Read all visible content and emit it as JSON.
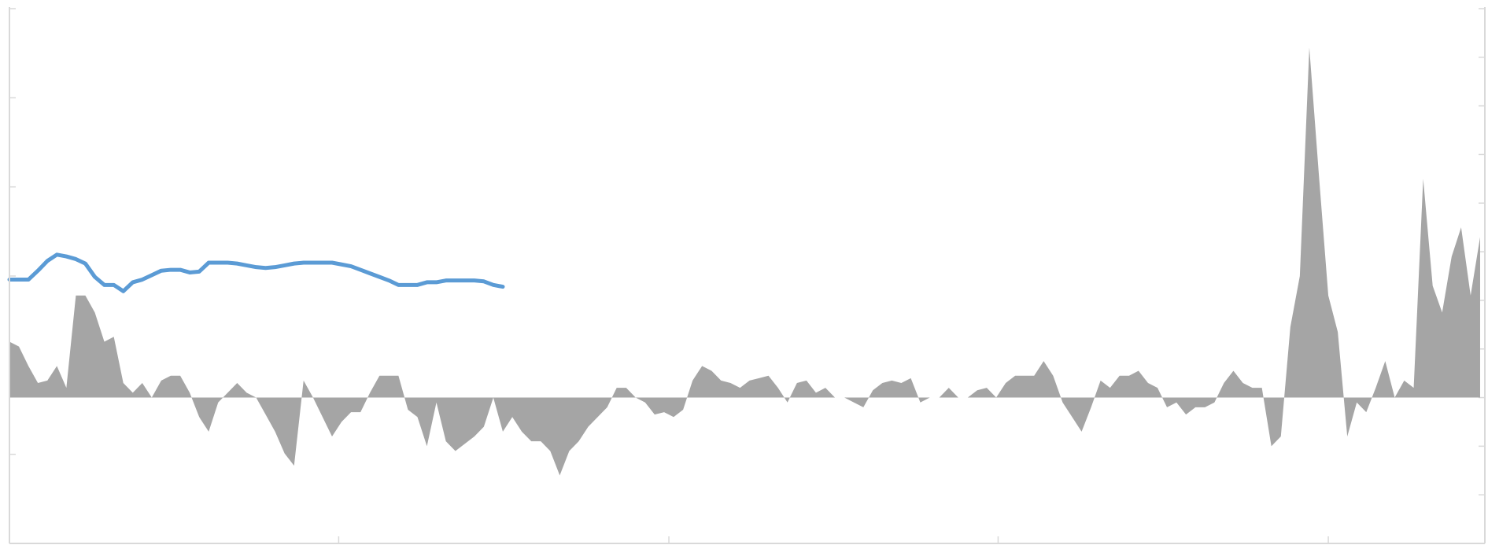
{
  "chart_data": {
    "type": "combo",
    "grid": false,
    "x": [
      0,
      10,
      20,
      30,
      40,
      50,
      60,
      70,
      80,
      90,
      100,
      110,
      120,
      130,
      140,
      150,
      160,
      170,
      180,
      190,
      200,
      210,
      220,
      230,
      240,
      250,
      260,
      270,
      280,
      290,
      300,
      310,
      320,
      330,
      340,
      350,
      360,
      370,
      380,
      390,
      400,
      410,
      420,
      430,
      440,
      450,
      460,
      470,
      480,
      490,
      500,
      510,
      520,
      530,
      540,
      550,
      560,
      570,
      580,
      590,
      600,
      610,
      620,
      630,
      640,
      650,
      660,
      670,
      680,
      690,
      700,
      710,
      720,
      730,
      740,
      750,
      760,
      770,
      780,
      790,
      800,
      810,
      820,
      830,
      840,
      850,
      860,
      870,
      880,
      890,
      900,
      910,
      920,
      930,
      940,
      950,
      960,
      970,
      980,
      990,
      1000,
      1010,
      1020,
      1030,
      1040,
      1050,
      1060,
      1070,
      1080,
      1090,
      1100,
      1110,
      1120,
      1130,
      1140,
      1150,
      1160,
      1170,
      1180,
      1190,
      1200,
      1210,
      1220,
      1230,
      1240,
      1250,
      1260,
      1270,
      1280,
      1290,
      1300,
      1310,
      1320,
      1330,
      1340,
      1350,
      1360,
      1370,
      1380,
      1390,
      1400,
      1410,
      1420,
      1430,
      1440,
      1450,
      1460,
      1470,
      1480,
      1490,
      1500,
      1510,
      1520,
      1530,
      1540,
      1550
    ],
    "xlim": [
      0,
      1555
    ],
    "xticks": [
      347,
      695,
      1042,
      1390
    ],
    "ylim": [
      0,
      6
    ],
    "yticks": [
      0,
      1,
      2,
      3,
      4,
      5,
      6
    ],
    "y2lim": [
      -3,
      8
    ],
    "y2ticks": [
      -3,
      -2,
      -1,
      0,
      1,
      2,
      3,
      4,
      5,
      6,
      7,
      8
    ],
    "series": [
      {
        "type": "area",
        "axis": "y2",
        "color": "#a5a5a5",
        "values": [
          1.15,
          1.05,
          0.65,
          0.3,
          0.35,
          0.65,
          0.2,
          2.1,
          2.1,
          1.75,
          1.15,
          1.25,
          0.3,
          0.1,
          0.3,
          0,
          0.35,
          0.45,
          0.45,
          0.1,
          -0.4,
          -0.7,
          -0.1,
          0.1,
          0.3,
          0.1,
          0,
          -0.35,
          -0.7,
          -1.15,
          -1.4,
          0.35,
          0,
          -0.4,
          -0.8,
          -0.5,
          -0.3,
          -0.3,
          0.1,
          0.45,
          0.45,
          0.45,
          -0.25,
          -0.4,
          -1,
          -0.1,
          -0.9,
          -1.1,
          -0.95,
          -0.8,
          -0.6,
          0,
          -0.7,
          -0.4,
          -0.7,
          -0.9,
          -0.9,
          -1.1,
          -1.6,
          -1.1,
          -0.9,
          -0.6,
          -0.4,
          -0.2,
          0.2,
          0.2,
          0,
          -0.1,
          -0.35,
          -0.3,
          -0.4,
          -0.25,
          0.35,
          0.65,
          0.55,
          0.35,
          0.3,
          0.2,
          0.35,
          0.4,
          0.45,
          0.2,
          -0.1,
          0.3,
          0.35,
          0.1,
          0.2,
          0,
          0,
          -0.1,
          -0.2,
          0.15,
          0.3,
          0.35,
          0.3,
          0.4,
          -0.1,
          0,
          0,
          0.2,
          0,
          0,
          0.15,
          0.2,
          0,
          0.3,
          0.45,
          0.45,
          0.45,
          0.75,
          0.45,
          -0.1,
          -0.4,
          -0.7,
          -0.2,
          0.35,
          0.2,
          0.45,
          0.45,
          0.55,
          0.3,
          0.2,
          -0.2,
          -0.1,
          -0.35,
          -0.2,
          -0.2,
          -0.1,
          0.3,
          0.55,
          0.3,
          0.2,
          0.2,
          -1,
          -0.8,
          1.45,
          2.5,
          7.2,
          4.6,
          2.1,
          1.35,
          -0.8,
          -0.1,
          -0.3,
          0.2,
          0.75,
          0,
          0.35,
          0.2,
          4.5,
          2.3,
          1.75,
          2.9,
          3.5,
          2.1,
          3.3
        ]
      },
      {
        "type": "line",
        "axis": "y",
        "color": "#5b9bd5",
        "values": [
          2.96,
          2.96,
          2.96,
          3.06,
          3.17,
          3.24,
          3.22,
          3.19,
          3.14,
          2.99,
          2.9,
          2.9,
          2.83,
          2.93,
          2.96,
          3.01,
          3.06,
          3.07,
          3.07,
          3.04,
          3.05,
          3.15,
          3.15,
          3.15,
          3.14,
          3.12,
          3.1,
          3.09,
          3.1,
          3.12,
          3.14,
          3.15,
          3.15,
          3.15,
          3.15,
          3.13,
          3.11,
          3.07,
          3.03,
          2.99,
          2.95,
          2.9,
          2.9,
          2.9,
          2.93,
          2.93,
          2.95,
          2.95,
          2.95,
          2.95,
          2.94,
          2.9,
          2.88,
          null,
          null,
          null,
          null,
          null,
          null,
          null,
          null,
          null,
          null,
          null,
          null,
          null,
          null,
          null,
          null,
          null,
          null,
          null,
          null,
          null,
          null,
          null,
          null,
          null,
          null,
          null,
          null,
          null,
          null,
          null,
          null,
          null,
          null,
          null,
          null,
          null,
          null,
          null,
          null,
          null,
          null,
          null,
          null,
          null,
          null,
          null,
          null,
          null,
          null,
          null,
          null,
          null,
          null,
          null,
          null,
          null,
          null,
          null,
          null,
          null,
          null,
          null,
          null,
          null,
          null,
          null,
          null,
          null,
          null,
          null,
          null,
          null,
          null,
          null,
          null,
          null,
          null,
          null,
          null,
          null,
          null,
          null,
          null,
          null,
          null,
          null,
          null,
          null,
          null,
          null,
          null,
          null,
          null,
          null,
          null,
          null,
          null,
          null,
          null,
          null,
          null,
          null
        ]
      }
    ]
  }
}
